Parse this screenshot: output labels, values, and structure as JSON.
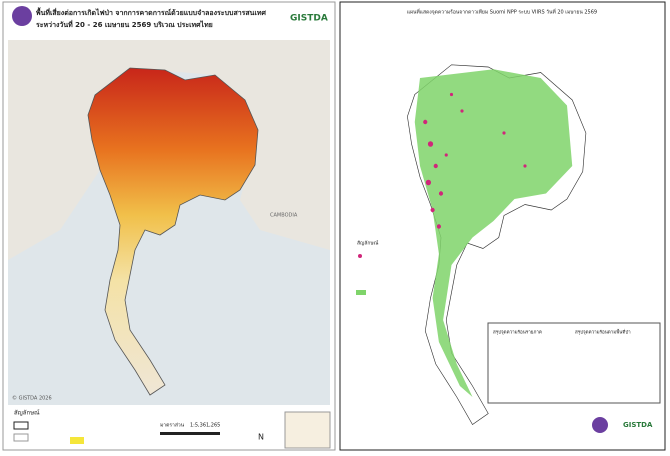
{
  "left_map": {
    "title": [
      "พื้นที่เสี่ยงต่อการเกิดไฟป่า จากการคาดการณ์ด้วยแบบจำลองระบบสารสนเทศ",
      "ระหว่างวันที่ 20 - 26 เมษายน 2569 บริเวณ ประเทศไทย"
    ],
    "logo": "GISTDA",
    "legend_title": "สัญลักษณ์",
    "scale_label": "มาตราส่วน",
    "scale": "1:5,361,265",
    "copyright": "© GISTDA 2026",
    "labels": [
      "CAMBODIA"
    ]
  },
  "right_map": {
    "title": "แผนที่แสดงจุดความร้อนจากดาวเทียม Suomi NPP ระบบ VIIRS วันที่ 20 เมษายน 2569",
    "legend_title": "สัญลักษณ์",
    "summary_region_title": "สรุปจุดความร้อนรายภาค",
    "summary_forest_title": "สรุปจุดความร้อนตามพื้นที่ป่า",
    "logo": "GISTDA"
  }
}
